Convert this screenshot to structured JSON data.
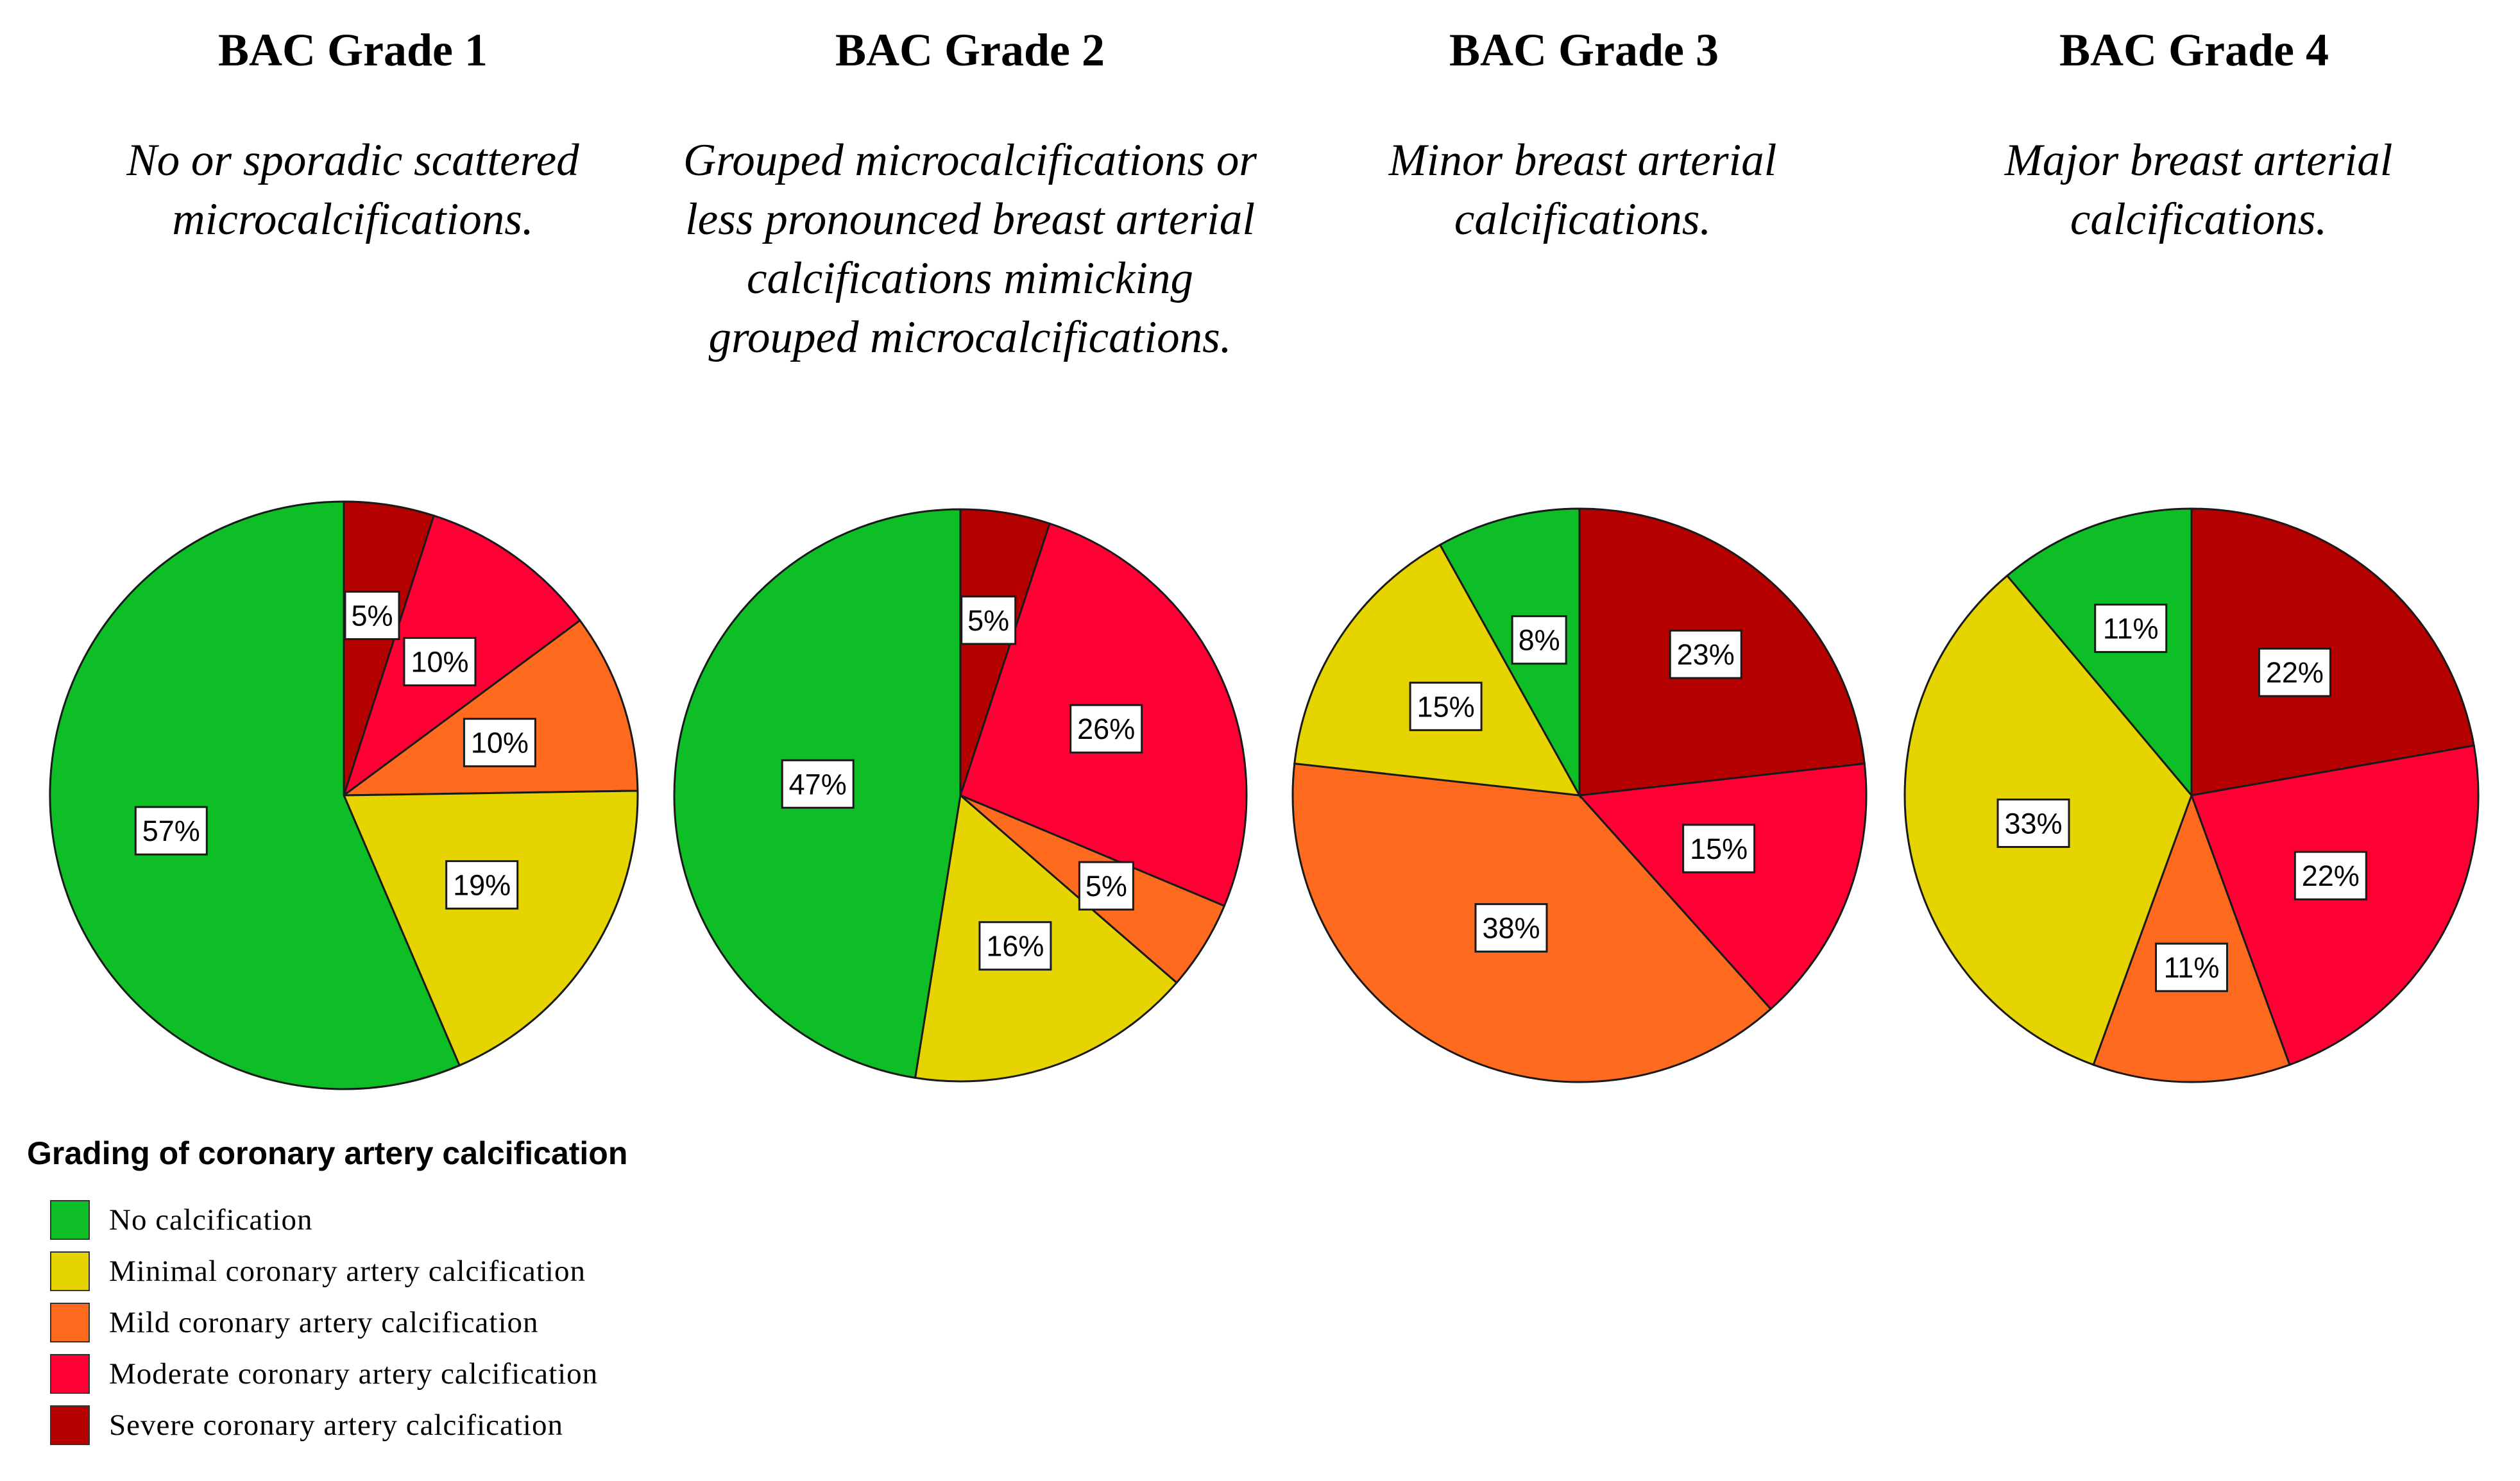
{
  "chart_data": [
    {
      "type": "pie",
      "title": "BAC Grade 1",
      "subtitle": "No or sporadic scattered microcalcifications.",
      "categories": [
        "No calcification",
        "Minimal coronary artery calcification",
        "Mild coronary artery calcification",
        "Moderate coronary artery calcification",
        "Severe coronary artery calcification"
      ],
      "values": [
        57,
        19,
        10,
        10,
        5
      ],
      "labels": [
        "57%",
        "19%",
        "10%",
        "10%",
        "5%"
      ]
    },
    {
      "type": "pie",
      "title": "BAC Grade 2",
      "subtitle": "Grouped microcalcifications or less pronounced breast arterial calcifications mimicking grouped microcalcifications.",
      "categories": [
        "No calcification",
        "Minimal coronary artery calcification",
        "Mild coronary artery calcification",
        "Moderate coronary artery calcification",
        "Severe coronary artery calcification"
      ],
      "values": [
        47,
        16,
        5,
        26,
        5
      ],
      "labels": [
        "47%",
        "16%",
        "5%",
        "26%",
        "5%"
      ]
    },
    {
      "type": "pie",
      "title": "BAC Grade 3",
      "subtitle": "Minor breast arterial calcifications.",
      "categories": [
        "No calcification",
        "Minimal coronary artery calcification",
        "Mild coronary artery calcification",
        "Moderate coronary artery calcification",
        "Severe coronary artery calcification"
      ],
      "values": [
        8,
        15,
        38,
        15,
        23
      ],
      "labels": [
        "8%",
        "15%",
        "38%",
        "15%",
        "23%"
      ]
    },
    {
      "type": "pie",
      "title": "BAC Grade 4",
      "subtitle": "Major breast arterial calcifications.",
      "categories": [
        "No calcification",
        "Minimal coronary artery calcification",
        "Mild coronary artery calcification",
        "Moderate coronary artery calcification",
        "Severe coronary artery calcification"
      ],
      "values": [
        11,
        33,
        11,
        22,
        22
      ],
      "labels": [
        "11%",
        "33%",
        "11%",
        "22%",
        "22%"
      ]
    }
  ],
  "legend": {
    "title": "Grading of coronary artery calcification",
    "items": [
      {
        "label": "No calcification",
        "color": "#0dbe27"
      },
      {
        "label": "Minimal coronary artery calcification",
        "color": "#e6d400"
      },
      {
        "label": "Mild coronary artery calcification",
        "color": "#fe6a1e"
      },
      {
        "label": "Moderate coronary artery calcification",
        "color": "#fe0034"
      },
      {
        "label": "Severe coronary artery calcification",
        "color": "#b50000"
      }
    ]
  }
}
